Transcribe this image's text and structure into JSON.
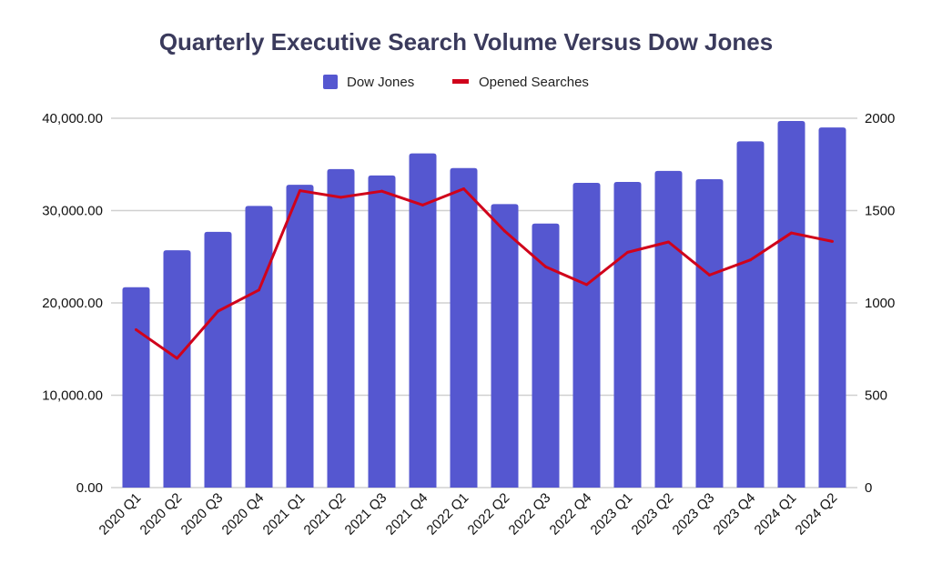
{
  "chart_data": {
    "type": "bar",
    "title": "Quarterly Executive Search Volume Versus Dow Jones",
    "categories": [
      "2020 Q1",
      "2020 Q2",
      "2020 Q3",
      "2020 Q4",
      "2021 Q1",
      "2021 Q2",
      "2021 Q3",
      "2021 Q4",
      "2022 Q1",
      "2022 Q2",
      "2022 Q3",
      "2022 Q4",
      "2023 Q1",
      "2023 Q2",
      "2023 Q3",
      "2023 Q4",
      "2024 Q1",
      "2024 Q2"
    ],
    "series": [
      {
        "name": "Dow Jones",
        "type": "bar",
        "axis": "left",
        "color": "#5557d0",
        "values": [
          21700,
          25700,
          27700,
          30500,
          32800,
          34500,
          33800,
          36200,
          34600,
          30700,
          28600,
          33000,
          33100,
          34300,
          33400,
          37500,
          39700,
          39000
        ]
      },
      {
        "name": "Opened Searches",
        "type": "line",
        "axis": "right",
        "color": "#d0021b",
        "values": [
          855,
          700,
          955,
          1070,
          1608,
          1572,
          1605,
          1530,
          1618,
          1389,
          1196,
          1099,
          1274,
          1330,
          1151,
          1233,
          1379,
          1333
        ]
      }
    ],
    "y_left": {
      "range": [
        0,
        40000
      ],
      "ticks": [
        0,
        10000,
        20000,
        30000,
        40000
      ],
      "tick_labels": [
        "0.00",
        "10,000.00",
        "20,000.00",
        "30,000.00",
        "40,000.00"
      ]
    },
    "y_right": {
      "range": [
        0,
        2000
      ],
      "ticks": [
        0,
        500,
        1000,
        1500,
        2000
      ],
      "tick_labels": [
        "0",
        "500",
        "1000",
        "1500",
        "2000"
      ]
    },
    "grid": true,
    "legend_position": "top"
  }
}
